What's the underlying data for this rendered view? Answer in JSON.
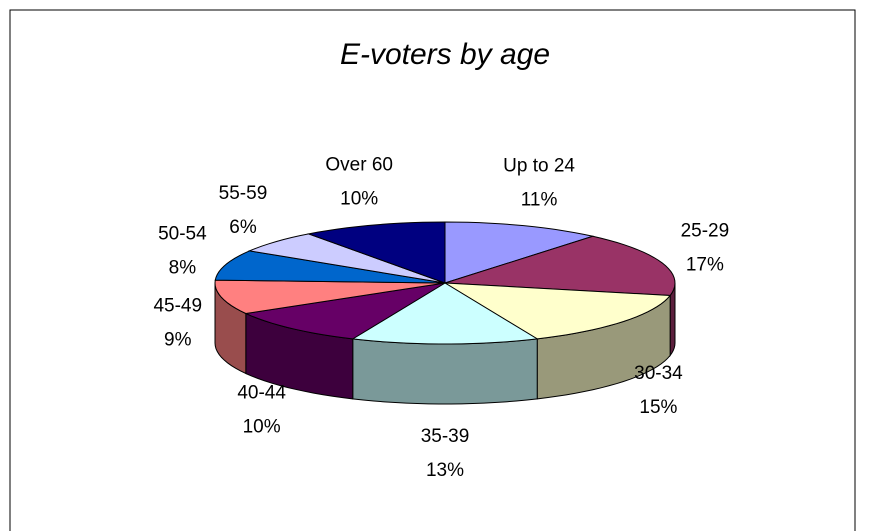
{
  "chart_data": {
    "type": "pie",
    "title": "E-voters by age",
    "categories": [
      "Up to 24",
      "25-29",
      "30-34",
      "35-39",
      "40-44",
      "45-49",
      "50-54",
      "55-59",
      "Over 60"
    ],
    "values": [
      11,
      17,
      15,
      13,
      10,
      9,
      8,
      6,
      10
    ],
    "value_labels": [
      "11%",
      "17%",
      "15%",
      "13%",
      "10%",
      "9%",
      "8%",
      "6%",
      "10%"
    ],
    "colors": [
      "#9999ff",
      "#993366",
      "#ffffcc",
      "#ccffff",
      "#660066",
      "#ff8080",
      "#0066cc",
      "#ccccff",
      "#000080"
    ]
  }
}
